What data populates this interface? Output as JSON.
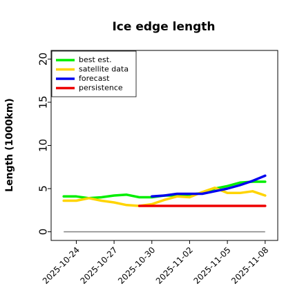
{
  "chart_data": {
    "type": "line",
    "title": "Ice edge length",
    "xlabel": "",
    "ylabel": "Length (1000km)",
    "xlim": [
      "2025-10-22",
      "2025-11-09"
    ],
    "ylim": [
      -1,
      21
    ],
    "yticks": [
      0,
      5,
      10,
      15,
      20
    ],
    "xticks": [
      {
        "date": "2025-10-24",
        "label": "2025-10-24",
        "color": "#000000"
      },
      {
        "date": "2025-10-27",
        "label": "2025-10-27",
        "color": "#000000"
      },
      {
        "date": "2025-10-30",
        "label": "2025-10-30",
        "color": "#008000"
      },
      {
        "date": "2025-11-02",
        "label": "2025-11-02",
        "color": "#000000"
      },
      {
        "date": "2025-11-05",
        "label": "2025-11-05",
        "color": "#000000"
      },
      {
        "date": "2025-11-08",
        "label": "2025-11-08",
        "color": "#000000"
      }
    ],
    "reference_line": {
      "y": 0,
      "color": "#808080"
    },
    "grid": false,
    "legend_position": "top-left",
    "series": [
      {
        "name": "best est.",
        "color": "#00ee00",
        "x": [
          "2025-10-23",
          "2025-10-24",
          "2025-10-25",
          "2025-10-26",
          "2025-10-27",
          "2025-10-28",
          "2025-10-29",
          "2025-10-30",
          "2025-10-31",
          "2025-11-01",
          "2025-11-02",
          "2025-11-03",
          "2025-11-04",
          "2025-11-05",
          "2025-11-06",
          "2025-11-07",
          "2025-11-08"
        ],
        "y": [
          4.1,
          4.1,
          3.9,
          4.0,
          4.2,
          4.3,
          4.0,
          4.0,
          4.2,
          4.2,
          4.3,
          4.5,
          5.0,
          5.3,
          5.7,
          5.8,
          5.8
        ]
      },
      {
        "name": "satellite data",
        "color": "#ffd400",
        "x": [
          "2025-10-23",
          "2025-10-24",
          "2025-10-25",
          "2025-10-26",
          "2025-10-27",
          "2025-10-28",
          "2025-10-29",
          "2025-10-30",
          "2025-10-31",
          "2025-11-01",
          "2025-11-02",
          "2025-11-03",
          "2025-11-04",
          "2025-11-05",
          "2025-11-06",
          "2025-11-07",
          "2025-11-08"
        ],
        "y": [
          3.6,
          3.6,
          3.9,
          3.6,
          3.4,
          3.1,
          3.0,
          3.2,
          3.7,
          4.1,
          4.0,
          4.6,
          5.1,
          4.5,
          4.5,
          4.7,
          4.2
        ]
      },
      {
        "name": "forecast",
        "color": "#0000ee",
        "x": [
          "2025-10-30",
          "2025-10-31",
          "2025-11-01",
          "2025-11-02",
          "2025-11-03",
          "2025-11-04",
          "2025-11-05",
          "2025-11-06",
          "2025-11-07",
          "2025-11-08"
        ],
        "y": [
          4.1,
          4.2,
          4.4,
          4.4,
          4.4,
          4.7,
          5.0,
          5.4,
          5.9,
          6.5
        ]
      },
      {
        "name": "persistence",
        "color": "#ee0000",
        "x": [
          "2025-10-29",
          "2025-10-30",
          "2025-10-31",
          "2025-11-01",
          "2025-11-02",
          "2025-11-03",
          "2025-11-04",
          "2025-11-05",
          "2025-11-06",
          "2025-11-07",
          "2025-11-08"
        ],
        "y": [
          3.0,
          3.0,
          3.0,
          3.0,
          3.0,
          3.0,
          3.0,
          3.0,
          3.0,
          3.0,
          3.0
        ]
      }
    ]
  }
}
